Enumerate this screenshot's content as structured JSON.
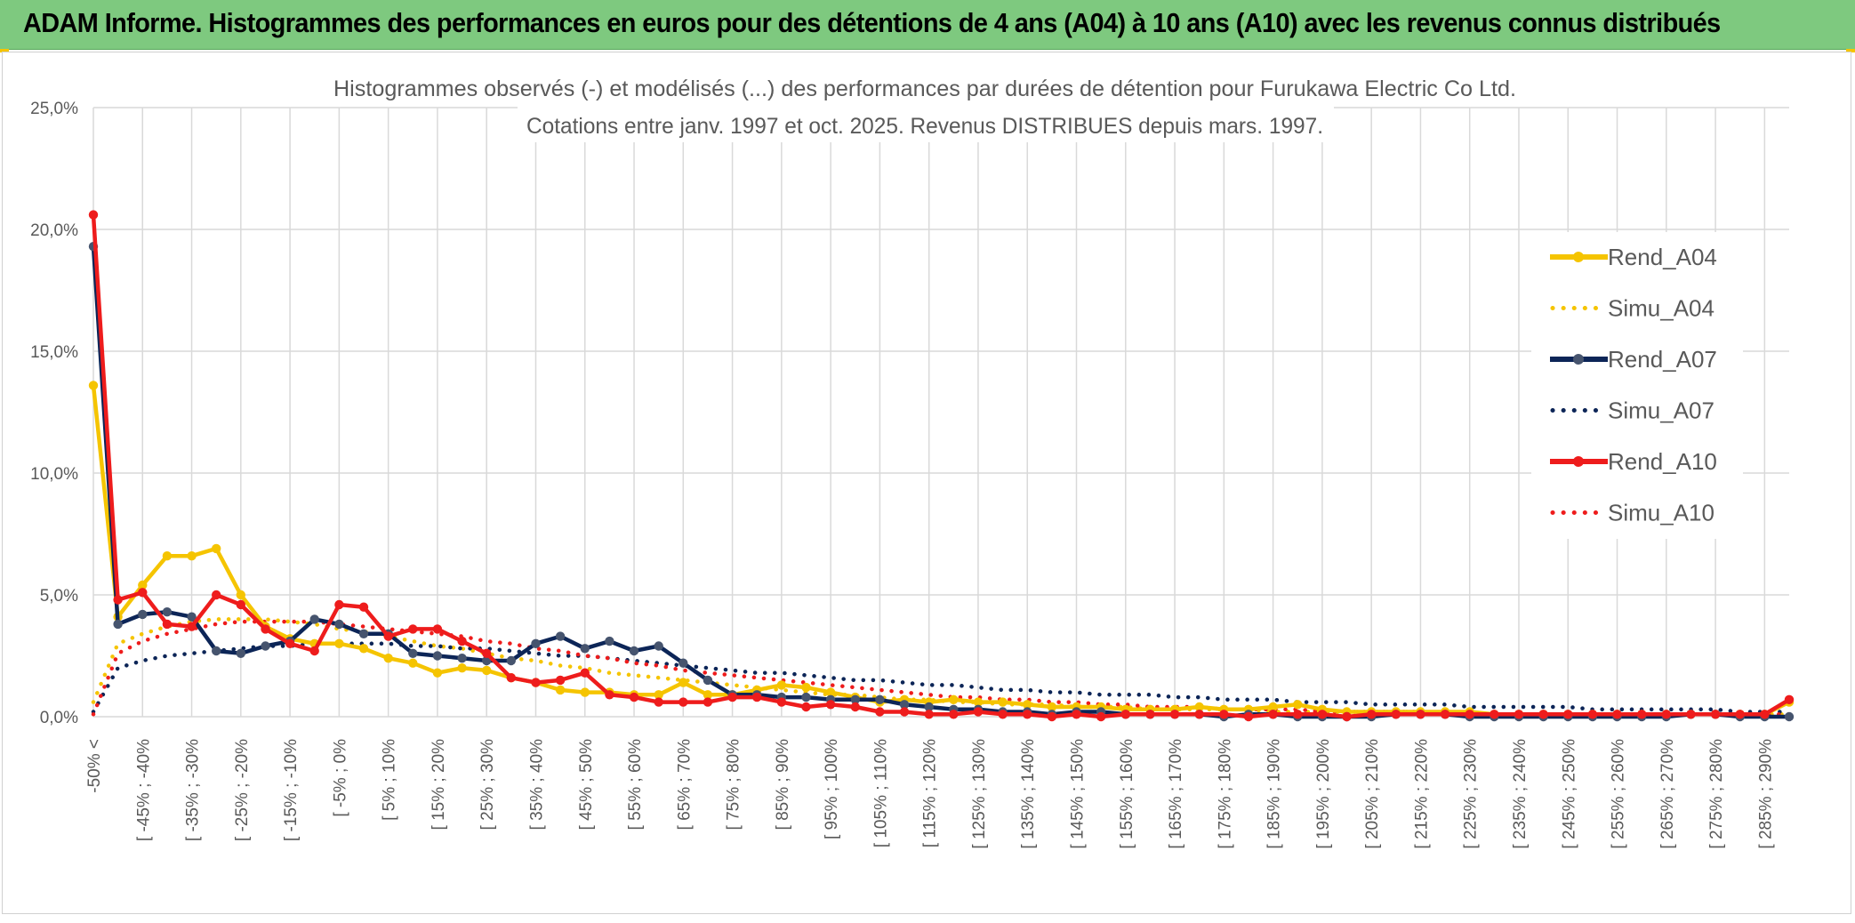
{
  "banner": {
    "title": "ADAM Informe. Histogrammes des performances en euros pour des détentions de 4 ans (A04) à 10 ans (A10) avec les revenus connus distribués"
  },
  "chart_data": {
    "type": "line",
    "title": "Histogrammes observés (-) et modélisés (...) des performances par durées de détention pour Furukawa Electric Co Ltd.",
    "subtitle": "Cotations entre janv. 1997 et oct. 2025. Revenus DISTRIBUES depuis mars. 1997.",
    "xlabel": "",
    "ylabel": "",
    "ylim": [
      0,
      25
    ],
    "yticks": [
      "0,0%",
      "5,0%",
      "10,0%",
      "15,0%",
      "20,0%",
      "25,0%"
    ],
    "grid": true,
    "legend_position": "right",
    "x_tick_labels": [
      "-50% <",
      "[ -45% ; -40%",
      "[ -35% ; -30%",
      "[ -25% ; -20%",
      "[ -15% ; -10%",
      "[ -5% ; 0%",
      "[ 5% ; 10%",
      "[ 15% ; 20%",
      "[ 25% ; 30%",
      "[ 35% ; 40%",
      "[ 45% ; 50%",
      "[ 55% ; 60%",
      "[ 65% ; 70%",
      "[ 75% ; 80%",
      "[ 85% ; 90%",
      "[ 95% ; 100%",
      "[ 105% ; 110%",
      "[ 115% ; 120%",
      "[ 125% ; 130%",
      "[ 135% ; 140%",
      "[ 145% ; 150%",
      "[ 155% ; 160%",
      "[ 165% ; 170%",
      "[ 175% ; 180%",
      "[ 185% ; 190%",
      "[ 195% ; 200%",
      "[ 205% ; 210%",
      "[ 215% ; 220%",
      "[ 225% ; 230%",
      "[ 235% ; 240%",
      "[ 245% ; 250%",
      "[ 255% ; 260%",
      "[ 265% ; 270%",
      "[ 275% ; 280%",
      "[ 285% ; 290%"
    ],
    "colors": {
      "A04": "#f5c400",
      "A07": "#0c2557",
      "A10": "#ee1c1c",
      "grid": "#d9d9d9"
    },
    "series": [
      {
        "name": "Rend_A04",
        "style": "solid",
        "color": "#f5c400",
        "values": [
          13.6,
          4.1,
          5.4,
          6.6,
          6.6,
          6.9,
          5.0,
          3.7,
          3.2,
          3.0,
          3.0,
          2.8,
          2.4,
          2.2,
          1.8,
          2.0,
          1.9,
          1.6,
          1.4,
          1.1,
          1.0,
          1.0,
          0.9,
          0.9,
          1.4,
          0.9,
          0.9,
          1.1,
          1.3,
          1.2,
          1.0,
          0.8,
          0.6,
          0.7,
          0.6,
          0.7,
          0.6,
          0.6,
          0.5,
          0.4,
          0.4,
          0.4,
          0.3,
          0.3,
          0.3,
          0.4,
          0.3,
          0.3,
          0.4,
          0.5,
          0.3,
          0.2,
          0.2,
          0.2,
          0.2,
          0.2,
          0.2,
          0.1,
          0.1,
          0.1,
          0.1,
          0.1,
          0.1,
          0.1,
          0.1,
          0.1,
          0.1,
          0.1,
          0.1,
          0.6
        ]
      },
      {
        "name": "Simu_A04",
        "style": "dotted",
        "color": "#f5c400",
        "values": [
          0.6,
          3.0,
          3.4,
          3.7,
          3.9,
          4.0,
          4.0,
          4.0,
          3.9,
          3.8,
          3.6,
          3.5,
          3.3,
          3.1,
          2.9,
          2.8,
          2.6,
          2.4,
          2.3,
          2.1,
          2.0,
          1.8,
          1.7,
          1.6,
          1.5,
          1.4,
          1.3,
          1.2,
          1.1,
          1.0,
          0.9,
          0.9,
          0.8,
          0.7,
          0.7,
          0.6,
          0.6,
          0.5,
          0.5,
          0.5,
          0.4,
          0.4,
          0.4,
          0.3,
          0.3,
          0.3,
          0.3,
          0.3,
          0.2,
          0.2,
          0.2,
          0.2,
          0.2,
          0.2,
          0.2,
          0.1,
          0.1,
          0.1,
          0.1,
          0.1,
          0.1,
          0.1,
          0.1,
          0.1,
          0.1,
          0.1,
          0.1,
          0.1,
          0.1,
          0.1
        ]
      },
      {
        "name": "Rend_A07",
        "style": "solid",
        "color": "#0c2557",
        "values": [
          19.3,
          3.8,
          4.2,
          4.3,
          4.1,
          2.7,
          2.6,
          2.9,
          3.1,
          4.0,
          3.8,
          3.4,
          3.4,
          2.6,
          2.5,
          2.4,
          2.3,
          2.3,
          3.0,
          3.3,
          2.8,
          3.1,
          2.7,
          2.9,
          2.2,
          1.5,
          0.9,
          0.9,
          0.8,
          0.8,
          0.7,
          0.7,
          0.7,
          0.5,
          0.4,
          0.3,
          0.3,
          0.2,
          0.2,
          0.1,
          0.2,
          0.2,
          0.1,
          0.1,
          0.1,
          0.1,
          0.0,
          0.1,
          0.1,
          0.0,
          0.0,
          0.0,
          0.0,
          0.1,
          0.1,
          0.1,
          0.0,
          0.0,
          0.0,
          0.0,
          0.0,
          0.0,
          0.0,
          0.0,
          0.0,
          0.1,
          0.1,
          0.0,
          0.0,
          0.0
        ]
      },
      {
        "name": "Simu_A07",
        "style": "dotted",
        "color": "#0c2557",
        "values": [
          0.2,
          2.0,
          2.3,
          2.5,
          2.6,
          2.7,
          2.8,
          2.9,
          2.9,
          3.0,
          3.0,
          3.0,
          3.0,
          2.9,
          2.9,
          2.8,
          2.8,
          2.7,
          2.6,
          2.5,
          2.5,
          2.4,
          2.3,
          2.2,
          2.1,
          2.0,
          1.9,
          1.8,
          1.8,
          1.7,
          1.6,
          1.5,
          1.5,
          1.4,
          1.3,
          1.3,
          1.2,
          1.1,
          1.1,
          1.0,
          1.0,
          0.9,
          0.9,
          0.9,
          0.8,
          0.8,
          0.7,
          0.7,
          0.7,
          0.6,
          0.6,
          0.6,
          0.5,
          0.5,
          0.5,
          0.5,
          0.4,
          0.4,
          0.4,
          0.4,
          0.4,
          0.3,
          0.3,
          0.3,
          0.3,
          0.3,
          0.3,
          0.2,
          0.2,
          0.2
        ]
      },
      {
        "name": "Rend_A10",
        "style": "solid",
        "color": "#ee1c1c",
        "values": [
          20.6,
          4.8,
          5.1,
          3.8,
          3.7,
          5.0,
          4.6,
          3.6,
          3.0,
          2.7,
          4.6,
          4.5,
          3.3,
          3.6,
          3.6,
          3.1,
          2.6,
          1.6,
          1.4,
          1.5,
          1.8,
          0.9,
          0.8,
          0.6,
          0.6,
          0.6,
          0.8,
          0.8,
          0.6,
          0.4,
          0.5,
          0.4,
          0.2,
          0.2,
          0.1,
          0.1,
          0.2,
          0.1,
          0.1,
          0.0,
          0.1,
          0.0,
          0.1,
          0.1,
          0.1,
          0.1,
          0.1,
          0.0,
          0.1,
          0.1,
          0.1,
          0.0,
          0.1,
          0.1,
          0.1,
          0.1,
          0.1,
          0.1,
          0.1,
          0.1,
          0.1,
          0.1,
          0.1,
          0.1,
          0.1,
          0.1,
          0.1,
          0.1,
          0.1,
          0.7
        ]
      },
      {
        "name": "Simu_A10",
        "style": "dotted",
        "color": "#ee1c1c",
        "values": [
          0.1,
          2.6,
          3.1,
          3.4,
          3.6,
          3.8,
          3.9,
          3.9,
          3.9,
          3.9,
          3.8,
          3.7,
          3.6,
          3.5,
          3.4,
          3.3,
          3.1,
          3.0,
          2.8,
          2.7,
          2.5,
          2.4,
          2.2,
          2.1,
          1.9,
          1.8,
          1.7,
          1.6,
          1.5,
          1.4,
          1.3,
          1.2,
          1.1,
          1.0,
          0.9,
          0.8,
          0.8,
          0.7,
          0.7,
          0.6,
          0.6,
          0.5,
          0.5,
          0.4,
          0.4,
          0.4,
          0.3,
          0.3,
          0.3,
          0.3,
          0.2,
          0.2,
          0.2,
          0.2,
          0.2,
          0.1,
          0.1,
          0.1,
          0.1,
          0.1,
          0.1,
          0.1,
          0.1,
          0.1,
          0.1,
          0.1,
          0.1,
          0.1,
          0.1,
          0.1
        ]
      }
    ]
  }
}
